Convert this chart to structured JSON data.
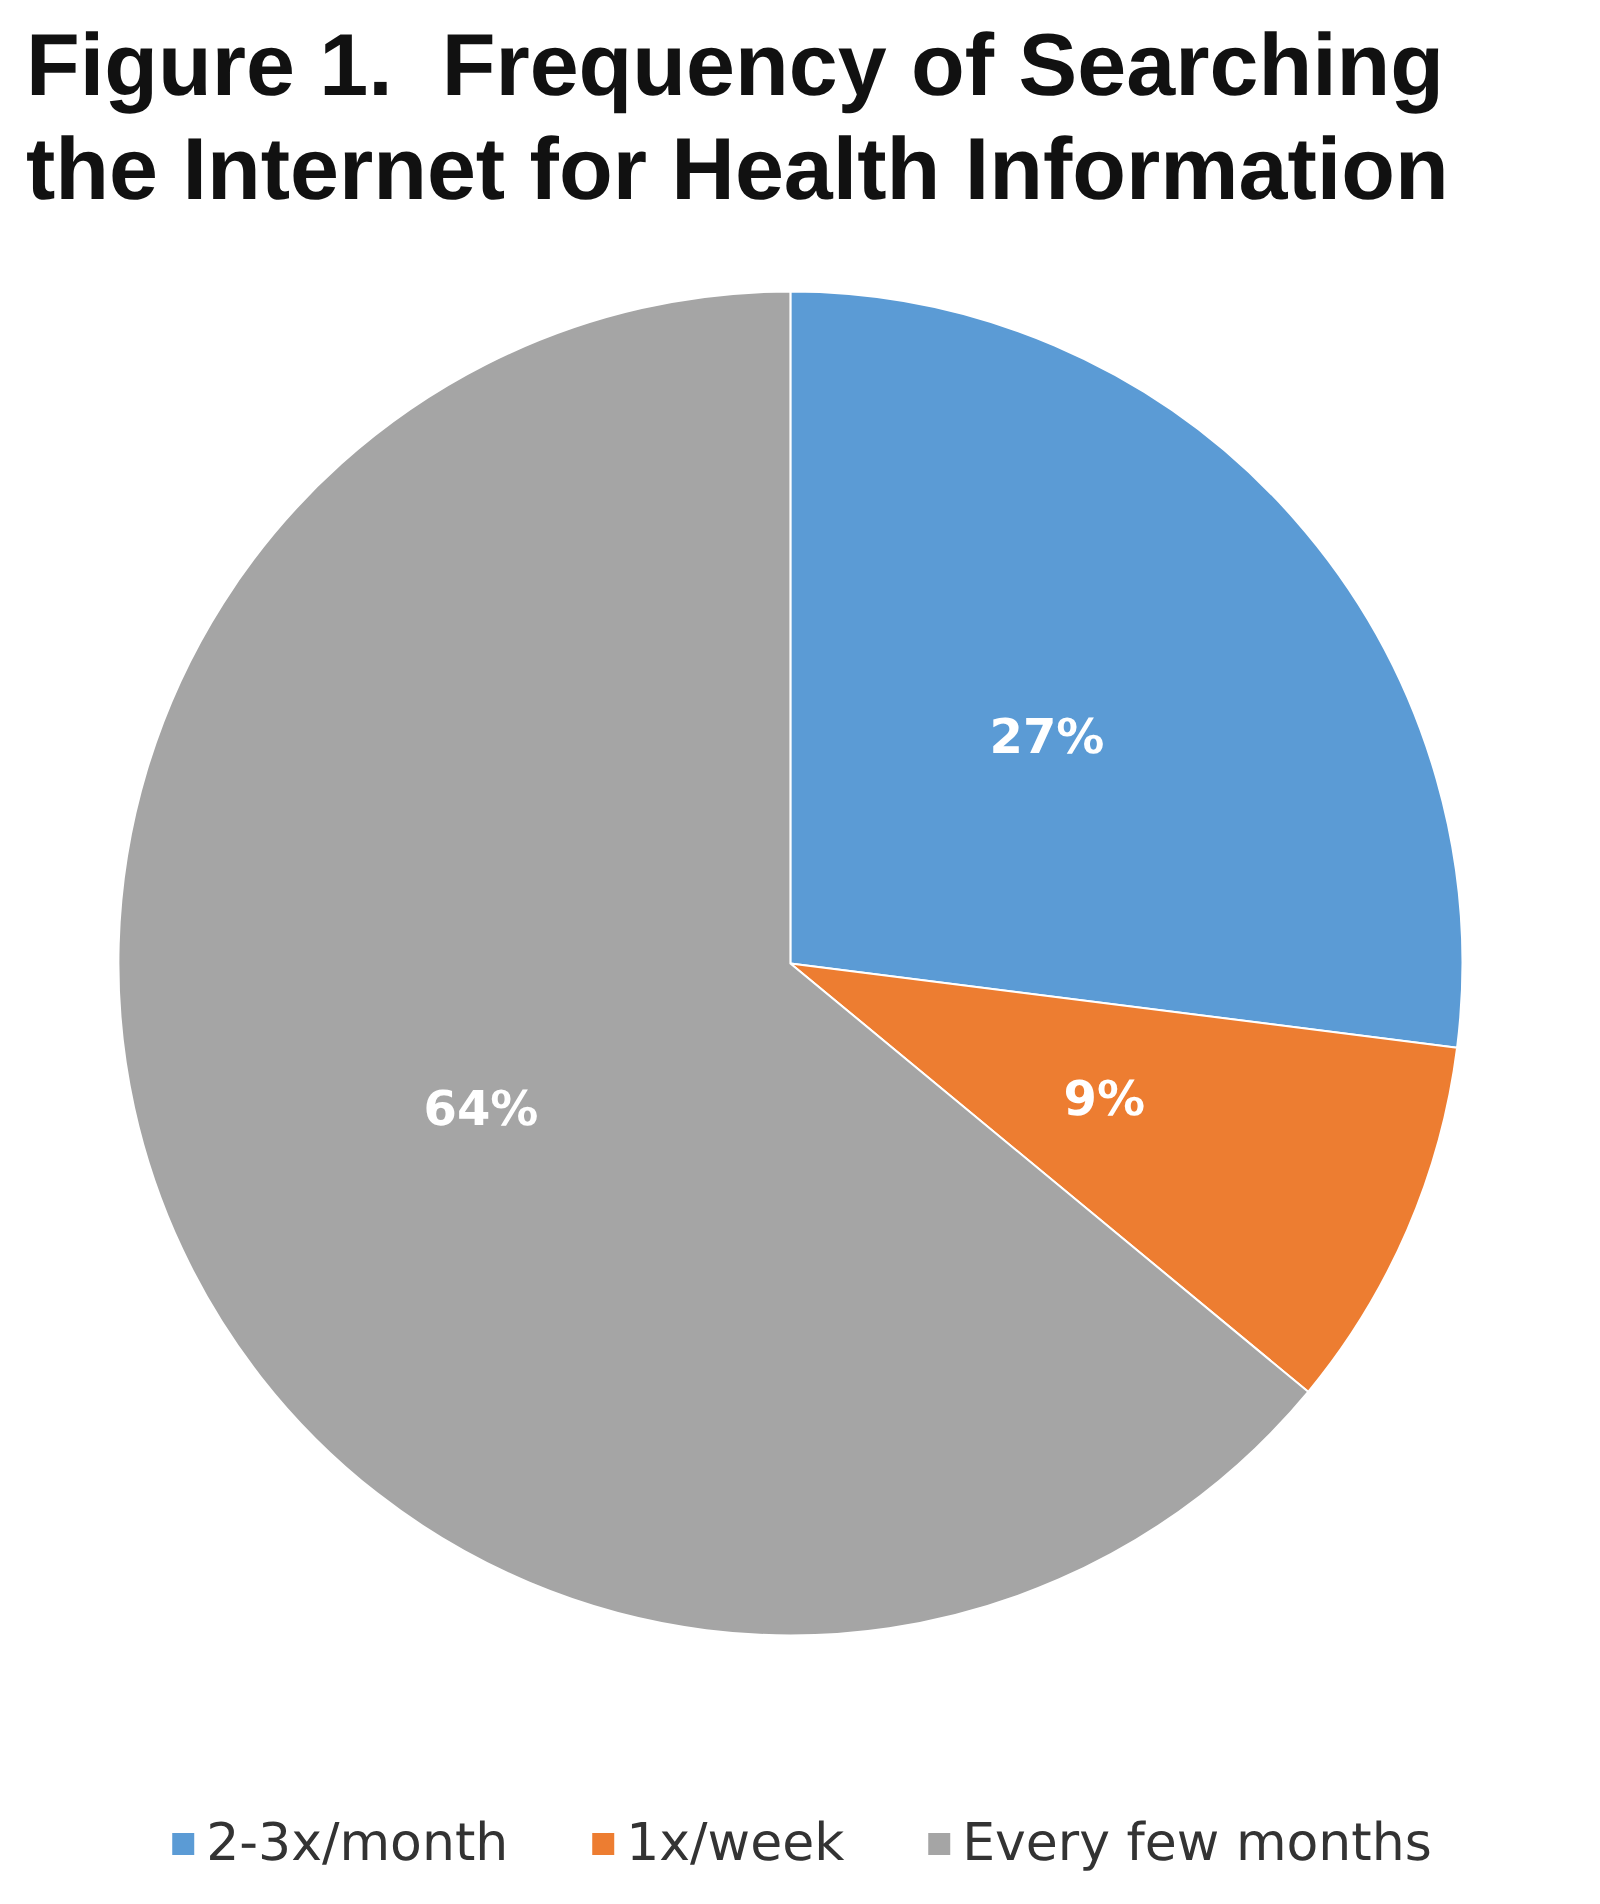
{
  "chart_data": {
    "type": "pie",
    "title": "Figure 1.  Frequency of Searching the Internet for Health Information",
    "categories": [
      "2-3x/month",
      "1x/week",
      "Every few months"
    ],
    "values": [
      27,
      9,
      64
    ],
    "colors": [
      "#5b9bd5",
      "#ed7d31",
      "#a5a5a5"
    ],
    "value_labels": [
      "27%",
      "9%",
      "64%"
    ],
    "legend": "bottom"
  }
}
